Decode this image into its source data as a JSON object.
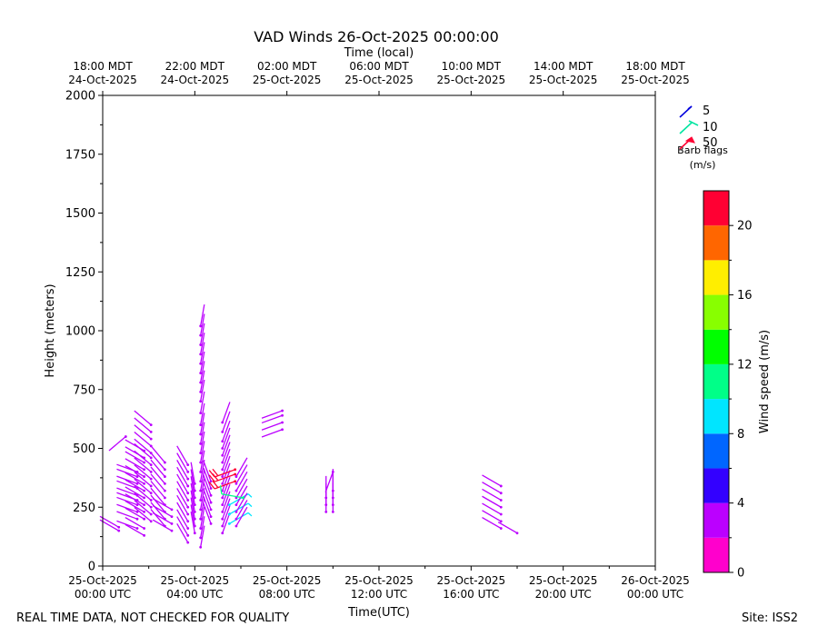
{
  "chart_data": {
    "type": "wind-barb",
    "title": "VAD Winds 26-Oct-2025 00:00:00",
    "top_axis_label": "Time (local)",
    "xlabel": "Time(UTC)",
    "ylabel": "Height (meters)",
    "ylim": [
      0,
      2000
    ],
    "xlim_hours": [
      0,
      24
    ],
    "y_ticks": [
      0,
      250,
      500,
      750,
      1000,
      1250,
      1500,
      1750,
      2000
    ],
    "x_ticks": [
      {
        "hour": 0,
        "line1": "25-Oct-2025",
        "line2": "00:00 UTC"
      },
      {
        "hour": 4,
        "line1": "25-Oct-2025",
        "line2": "04:00 UTC"
      },
      {
        "hour": 8,
        "line1": "25-Oct-2025",
        "line2": "08:00 UTC"
      },
      {
        "hour": 12,
        "line1": "25-Oct-2025",
        "line2": "12:00 UTC"
      },
      {
        "hour": 16,
        "line1": "25-Oct-2025",
        "line2": "16:00 UTC"
      },
      {
        "hour": 20,
        "line1": "25-Oct-2025",
        "line2": "20:00 UTC"
      },
      {
        "hour": 24,
        "line1": "26-Oct-2025",
        "line2": "00:00 UTC"
      }
    ],
    "top_ticks": [
      {
        "hour": 0,
        "line1": "18:00 MDT",
        "line2": "24-Oct-2025"
      },
      {
        "hour": 4,
        "line1": "22:00 MDT",
        "line2": "24-Oct-2025"
      },
      {
        "hour": 8,
        "line1": "02:00 MDT",
        "line2": "25-Oct-2025"
      },
      {
        "hour": 12,
        "line1": "06:00 MDT",
        "line2": "25-Oct-2025"
      },
      {
        "hour": 16,
        "line1": "10:00 MDT",
        "line2": "25-Oct-2025"
      },
      {
        "hour": 20,
        "line1": "14:00 MDT",
        "line2": "25-Oct-2025"
      },
      {
        "hour": 24,
        "line1": "18:00 MDT",
        "line2": "25-Oct-2025"
      }
    ],
    "legend": {
      "entries": [
        {
          "label": "5",
          "color": "#0000dd"
        },
        {
          "label": "10",
          "color": "#00e5a0"
        },
        {
          "label": "50",
          "color": "#ff0033"
        }
      ],
      "caption_line1": "Barb flags",
      "caption_line2": "(m/s)"
    },
    "colorbar": {
      "label": "Wind speed (m/s)",
      "range": [
        0,
        22
      ],
      "ticks": [
        0,
        4,
        8,
        12,
        16,
        20
      ],
      "bins": [
        {
          "from": 0,
          "to": 2,
          "color": "#ff00cc"
        },
        {
          "from": 2,
          "to": 4,
          "color": "#bb00ff"
        },
        {
          "from": 4,
          "to": 6,
          "color": "#3300ff"
        },
        {
          "from": 6,
          "to": 8,
          "color": "#0066ff"
        },
        {
          "from": 8,
          "to": 10,
          "color": "#00e5ff"
        },
        {
          "from": 10,
          "to": 12,
          "color": "#00ff88"
        },
        {
          "from": 12,
          "to": 14,
          "color": "#00ff00"
        },
        {
          "from": 14,
          "to": 16,
          "color": "#88ff00"
        },
        {
          "from": 16,
          "to": 18,
          "color": "#ffee00"
        },
        {
          "from": 18,
          "to": 20,
          "color": "#ff6600"
        },
        {
          "from": 20,
          "to": 22,
          "color": "#ff0033"
        }
      ]
    },
    "profiles": [
      {
        "hour": 0.7,
        "heights": [
          150,
          165
        ],
        "speed": 2,
        "dir": 300
      },
      {
        "hour": 1.0,
        "heights": [
          550
        ],
        "speed": 2,
        "dir": 230
      },
      {
        "hour": 1.5,
        "heights": [
          160,
          200,
          230,
          260,
          280,
          300,
          330,
          350,
          380,
          400
        ],
        "speed": 2,
        "dir": 290
      },
      {
        "hour": 1.8,
        "heights": [
          130,
          160,
          200,
          230,
          260,
          290,
          320,
          350,
          380,
          410,
          440,
          460,
          490
        ],
        "speed": 2,
        "dir": 300
      },
      {
        "hour": 2.1,
        "heights": [
          190,
          220,
          250,
          280,
          310,
          340,
          370,
          400,
          430,
          460,
          480,
          510,
          540,
          570,
          600
        ],
        "speed": 3,
        "dir": 310
      },
      {
        "hour": 2.7,
        "heights": [
          170,
          200,
          230,
          260,
          290,
          320,
          350,
          380,
          410,
          440
        ],
        "speed": 2,
        "dir": 320
      },
      {
        "hour": 3.0,
        "heights": [
          150,
          180,
          210,
          240
        ],
        "speed": 2,
        "dir": 300
      },
      {
        "hour": 3.7,
        "heights": [
          100,
          130,
          160,
          190,
          220,
          250,
          280,
          310,
          340,
          370,
          400,
          430
        ],
        "speed": 2,
        "dir": 330
      },
      {
        "hour": 4.0,
        "heights": [
          140,
          170,
          200,
          230,
          260,
          290,
          320,
          350
        ],
        "speed": 3,
        "dir": 350
      },
      {
        "hour": 4.25,
        "heights": [
          80,
          120,
          160,
          200,
          240,
          280,
          320,
          360,
          400,
          440,
          480,
          520,
          560,
          600,
          650,
          700,
          740,
          780,
          820,
          860,
          900,
          940,
          980,
          1020
        ],
        "speed": 2,
        "dir": 10
      },
      {
        "hour": 4.7,
        "heights": [
          180,
          210,
          240,
          270,
          300,
          330,
          360
        ],
        "speed": 3,
        "dir": 340
      },
      {
        "hour": 5.2,
        "heights": [
          140,
          170,
          200,
          230,
          260,
          290,
          320,
          350,
          380,
          410,
          440,
          470,
          500,
          530,
          570,
          610
        ],
        "speed": 2,
        "dir": 20
      },
      {
        "hour": 5.5,
        "heights": [
          180,
          220,
          260
        ],
        "speed": 9,
        "dir": 60
      },
      {
        "hour": 5.75,
        "heights": [
          360,
          390,
          410
        ],
        "speed": 21,
        "dir": 250
      },
      {
        "hour": 5.8,
        "heights": [
          170,
          200,
          230,
          260,
          290,
          320,
          350,
          380
        ],
        "speed": 2,
        "dir": 30
      },
      {
        "hour": 6.1,
        "heights": [
          290
        ],
        "speed": 10,
        "dir": 280
      },
      {
        "hour": 7.8,
        "heights": [
          580,
          610,
          640,
          660
        ],
        "speed": 3,
        "dir": 250
      },
      {
        "hour": 9.7,
        "heights": [
          230,
          260,
          290
        ],
        "speed": 2,
        "dir": 0
      },
      {
        "hour": 10.0,
        "heights": [
          230,
          260,
          290,
          320
        ],
        "speed": 2,
        "dir": 0
      },
      {
        "hour": 10.0,
        "heights": [
          400
        ],
        "speed": 3,
        "dir": 200
      },
      {
        "hour": 17.3,
        "heights": [
          160,
          190,
          220,
          250,
          280,
          310,
          340
        ],
        "speed": 3,
        "dir": 300
      },
      {
        "hour": 18.0,
        "heights": [
          140
        ],
        "speed": 3,
        "dir": 300
      }
    ]
  },
  "footer": {
    "left": "REAL TIME DATA, NOT CHECKED FOR QUALITY",
    "right": "Site: ISS2"
  }
}
